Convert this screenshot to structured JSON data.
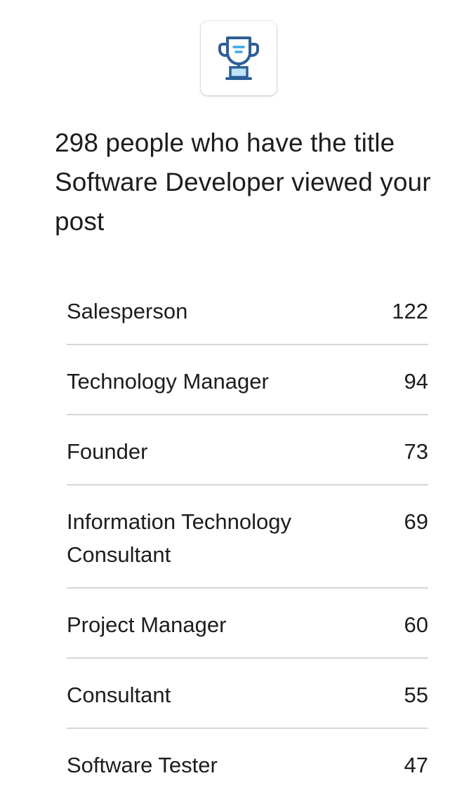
{
  "badge": {
    "icon": "trophy-icon",
    "colors": {
      "outline": "#2d5f96",
      "fill": "#bfe3fa",
      "accent": "#39a9e8"
    }
  },
  "headline": "298 people who have the title Software Developer viewed your post",
  "titles": [
    {
      "label": "Salesperson",
      "count": "122"
    },
    {
      "label": "Technology Manager",
      "count": "94"
    },
    {
      "label": "Founder",
      "count": "73"
    },
    {
      "label": "Information Technology Consultant",
      "count": "69"
    },
    {
      "label": "Project Manager",
      "count": "60"
    },
    {
      "label": "Consultant",
      "count": "55"
    },
    {
      "label": "Software Tester",
      "count": "47"
    }
  ]
}
